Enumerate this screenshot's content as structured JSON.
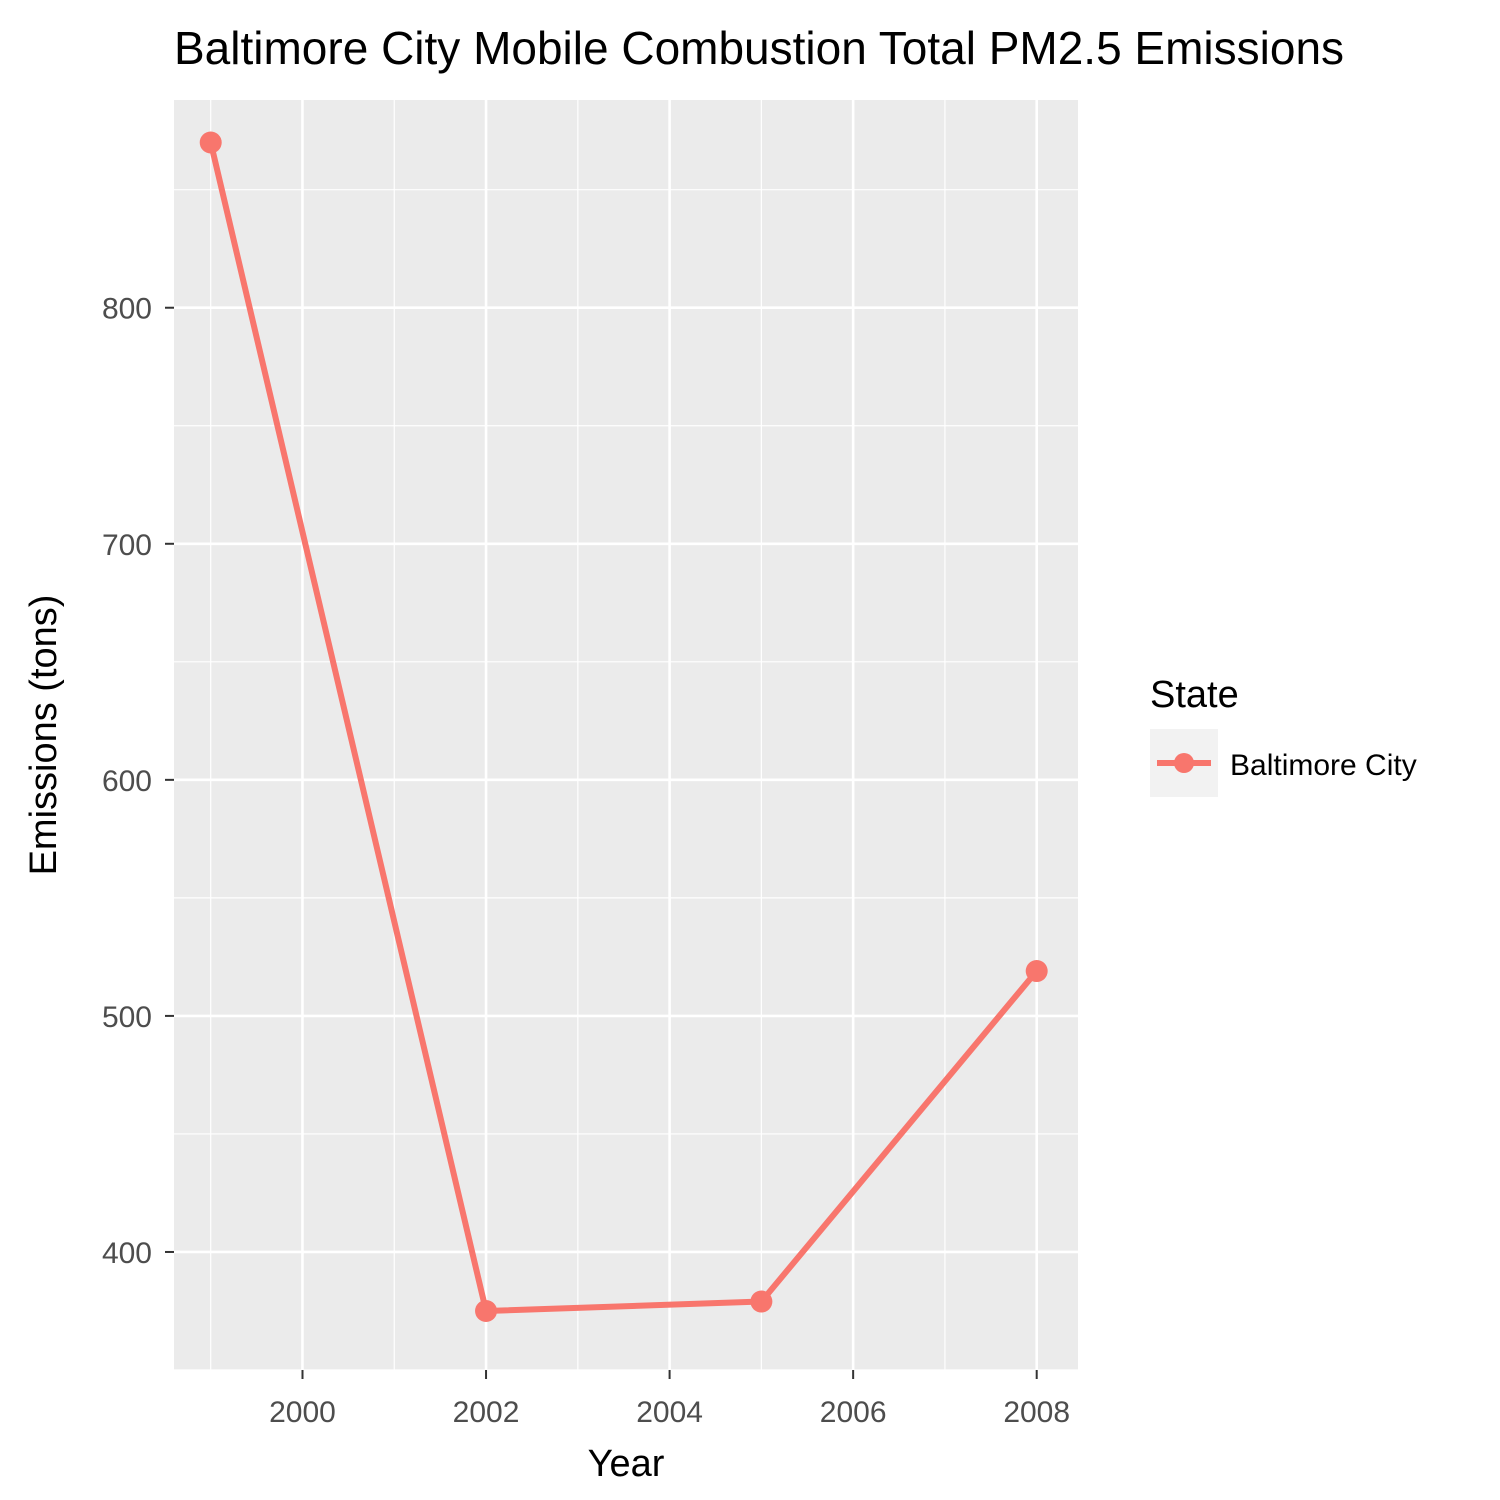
{
  "chart_data": {
    "type": "line",
    "title": "Baltimore City Mobile Combustion Total PM2.5 Emissions",
    "xlabel": "Year",
    "ylabel": "Emissions (tons)",
    "x": [
      1999,
      2002,
      2005,
      2008
    ],
    "series": [
      {
        "name": "Baltimore City",
        "values": [
          870,
          375,
          379,
          519
        ]
      }
    ],
    "xlim": [
      1998.6,
      2008.45
    ],
    "ylim": [
      350,
      888
    ],
    "x_ticks": [
      2000,
      2002,
      2004,
      2006,
      2008
    ],
    "y_ticks": [
      400,
      500,
      600,
      700,
      800
    ],
    "legend": {
      "title": "State",
      "placement": "right"
    },
    "grid": true,
    "colors": {
      "series": "#F8766D",
      "panel": "#EBEBEB",
      "grid": "#FFFFFF"
    }
  }
}
